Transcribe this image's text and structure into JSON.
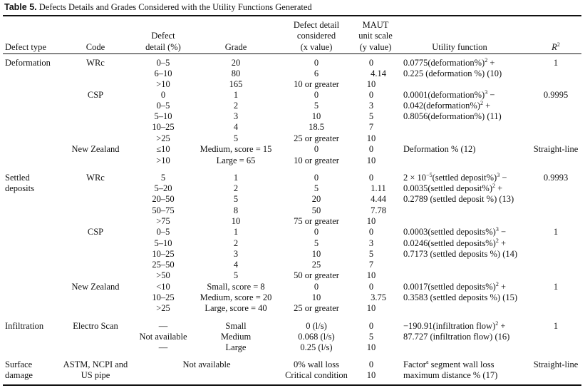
{
  "caption": {
    "label": "Table 5.",
    "text": "Defects Details and Grades Considered with the Utility Functions Generated"
  },
  "headers": {
    "defect_type": "Defect type",
    "code": "Code",
    "defect_detail_1": "Defect",
    "defect_detail_2": "detail (%)",
    "grade": "Grade",
    "considered_1": "Defect detail",
    "considered_2": "considered",
    "considered_3": "(x value)",
    "maut_1": "MAUT",
    "maut_2": "unit scale",
    "maut_3": "(y value)",
    "utility": "Utility function",
    "r2": "R",
    "r2_sup": "2"
  },
  "rows": {
    "deformation": {
      "type": "Deformation",
      "wrc": {
        "code": "WRc",
        "details": [
          "0–5",
          "6–10",
          ">10"
        ],
        "grades": [
          "20",
          "80",
          "165"
        ],
        "x": [
          "0",
          "6",
          "10 or greater"
        ],
        "y": [
          "0",
          "4.14",
          "10"
        ],
        "u1": "0.0775(deformation%)",
        "u1s": "2",
        "u1e": " +",
        "u2": "0.225 (deformation %) (10)",
        "r2": "1"
      },
      "csp": {
        "code": "CSP",
        "details": [
          "0",
          "0–5",
          "5–10",
          "10–25",
          ">25"
        ],
        "grades": [
          "1",
          "2",
          "3",
          "4",
          "5"
        ],
        "x": [
          "0",
          "5",
          "10",
          "18.5",
          "25 or greater"
        ],
        "y": [
          "0",
          "3",
          "5",
          "7",
          "10"
        ],
        "u1": "0.0001(deformation%)",
        "u1s": "3",
        "u1e": " −",
        "u2": "0.042(deformation%)",
        "u2s": "2",
        "u2e": " +",
        "u3": "0.8056(deformation%) (11)",
        "r2": "0.9995"
      },
      "nz": {
        "code": "New Zealand",
        "details": [
          "≤10",
          ">10"
        ],
        "grades": [
          "Medium, score = 15",
          "Large = 65"
        ],
        "x": [
          "0",
          "10 or greater"
        ],
        "y": [
          "0",
          "10"
        ],
        "u1": "Deformation % (12)",
        "r2": "Straight-line"
      }
    },
    "settled": {
      "type_1": "Settled",
      "type_2": "deposits",
      "wrc": {
        "code": "WRc",
        "details": [
          "5",
          "5–20",
          "20–50",
          "50–75",
          ">75"
        ],
        "grades": [
          "1",
          "2",
          "5",
          "8",
          "10"
        ],
        "x": [
          "0",
          "5",
          "20",
          "50",
          "75 or greater"
        ],
        "y": [
          "0",
          "1.11",
          "4.44",
          "7.78",
          "10"
        ],
        "u1a": "2 × 10",
        "u1as": "−5",
        "u1b": "(settled deposit%)",
        "u1s": "3",
        "u1e": " −",
        "u2": "0.0035(settled deposit%)",
        "u2s": "2",
        "u2e": " +",
        "u3": "0.2789 (settled deposit %) (13)",
        "r2": "0.9993"
      },
      "csp": {
        "code": "CSP",
        "details": [
          "0–5",
          "5–10",
          "10–25",
          "25–50",
          ">50"
        ],
        "grades": [
          "1",
          "2",
          "3",
          "4",
          "5"
        ],
        "x": [
          "0",
          "5",
          "10",
          "25",
          "50 or greater"
        ],
        "y": [
          "0",
          "3",
          "5",
          "7",
          "10"
        ],
        "u1": "0.0003(settled deposits%)",
        "u1s": "3",
        "u1e": " −",
        "u2": "0.0246(settled deposits%)",
        "u2s": "2",
        "u2e": " +",
        "u3": "0.7173 (settled deposits %) (14)",
        "r2": "1"
      },
      "nz": {
        "code": "New Zealand",
        "details": [
          "<10",
          "10–25",
          ">25"
        ],
        "grades": [
          "Small, score = 8",
          "Medium, score = 20",
          "Large, score = 40"
        ],
        "x": [
          "0",
          "10",
          "25 or greater"
        ],
        "y": [
          "0",
          "3.75",
          "10"
        ],
        "u1": "0.0017(settled deposits%)",
        "u1s": "2",
        "u1e": " +",
        "u2": "0.3583 (settled deposits %) (15)",
        "r2": "1"
      }
    },
    "infiltration": {
      "type": "Infiltration",
      "code": "Electro Scan",
      "details": [
        "—",
        "Not available",
        "—"
      ],
      "grades": [
        "Small",
        "Medium",
        "Large"
      ],
      "x": [
        "0 (l/s)",
        "0.068 (l/s)",
        "0.25 (l/s)"
      ],
      "y": [
        "0",
        "5",
        "10"
      ],
      "u1": "−190.91(infiltration flow)",
      "u1s": "2",
      "u1e": " +",
      "u2": "87.727 (infiltration flow) (16)",
      "r2": "1"
    },
    "surface": {
      "type_1": "Surface",
      "type_2": "damage",
      "code_1": "ASTM, NCPI and",
      "code_2": "US pipe",
      "detail": "Not available",
      "x": [
        "0% wall loss",
        "Critical condition"
      ],
      "y": [
        "0",
        "10"
      ],
      "u1a": "Factor",
      "u1as": "a",
      "u1b": " segment wall loss",
      "u2": "maximum distance % (17)",
      "r2": "Straight-line"
    }
  }
}
